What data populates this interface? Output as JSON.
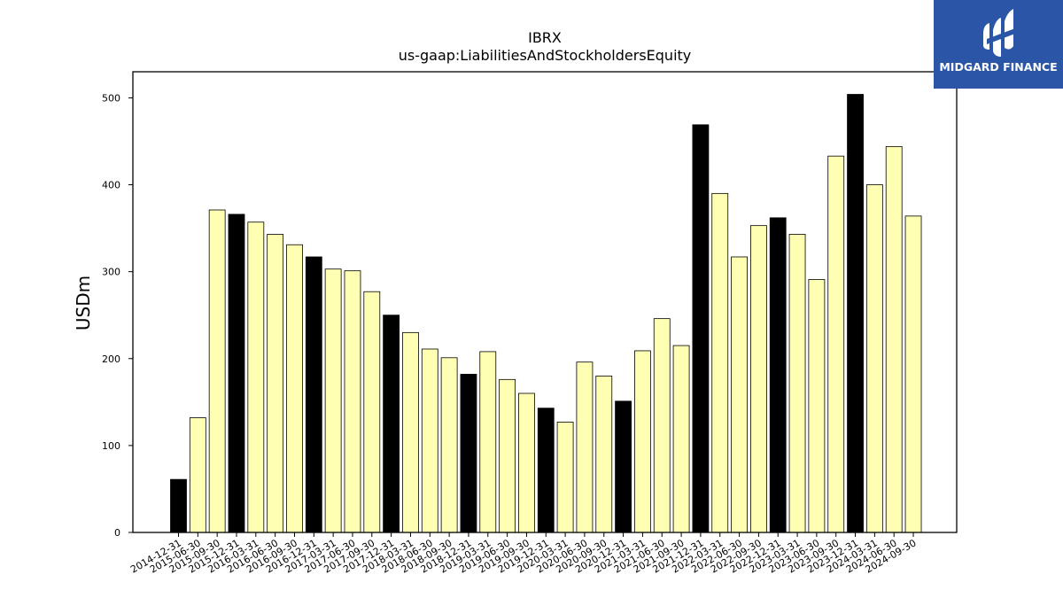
{
  "chart_data": {
    "type": "bar",
    "title": "IBRX",
    "subtitle": "us-gaap:LiabilitiesAndStockholdersEquity",
    "xlabel": "",
    "ylabel": "USDm",
    "ylim": [
      0,
      530
    ],
    "yticks": [
      0,
      100,
      200,
      300,
      400,
      500
    ],
    "grid": false,
    "colors": {
      "annual": "#000000",
      "quarterly": "#ffffb3",
      "edge": "#000000"
    },
    "categories": [
      "2014-12-31",
      "2015-06-30",
      "2015-09-30",
      "2015-12-31",
      "2016-03-31",
      "2016-06-30",
      "2016-09-30",
      "2016-12-31",
      "2017-03-31",
      "2017-06-30",
      "2017-09-30",
      "2017-12-31",
      "2018-03-31",
      "2018-06-30",
      "2018-09-30",
      "2018-12-31",
      "2019-03-31",
      "2019-06-30",
      "2019-09-30",
      "2019-12-31",
      "2020-03-31",
      "2020-06-30",
      "2020-09-30",
      "2020-12-31",
      "2021-03-31",
      "2021-06-30",
      "2021-09-30",
      "2021-12-31",
      "2022-03-31",
      "2022-06-30",
      "2022-09-30",
      "2022-12-31",
      "2023-03-31",
      "2023-06-30",
      "2023-09-30",
      "2023-12-31",
      "2024-03-31",
      "2024-06-30",
      "2024-09-30"
    ],
    "values": [
      61,
      132,
      371,
      366,
      357,
      343,
      331,
      317,
      303,
      301,
      277,
      250,
      230,
      211,
      201,
      182,
      208,
      176,
      160,
      143,
      127,
      196,
      180,
      151,
      209,
      246,
      215,
      469,
      390,
      317,
      353,
      362,
      343,
      291,
      433,
      504,
      400,
      444,
      364
    ]
  },
  "logo": {
    "text": "MIDGARD FINANCE",
    "background": "#2b56a8"
  }
}
